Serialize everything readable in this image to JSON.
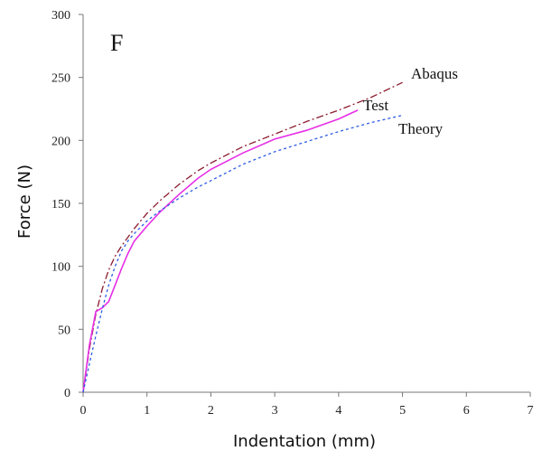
{
  "chart_data": {
    "type": "line",
    "panel_label": "F",
    "xlabel": "Indentation (mm)",
    "ylabel": "Force (N)",
    "xlim": [
      0,
      7
    ],
    "ylim": [
      0,
      300
    ],
    "xticks": [
      "0",
      "1",
      "2",
      "3",
      "4",
      "5",
      "6",
      "7"
    ],
    "yticks": [
      "0",
      "50",
      "100",
      "150",
      "200",
      "250",
      "300"
    ],
    "grid": false,
    "series": [
      {
        "name": "Abaqus",
        "color": "#8b1a2e",
        "dash": "dash-dot",
        "x": [
          0,
          0.1,
          0.2,
          0.3,
          0.4,
          0.5,
          0.6,
          0.7,
          0.8,
          1.0,
          1.2,
          1.5,
          1.8,
          2.0,
          2.5,
          3.0,
          3.5,
          4.0,
          4.5,
          5.0
        ],
        "y": [
          0,
          35,
          62,
          82,
          97,
          108,
          116,
          123,
          130,
          142,
          152,
          165,
          176,
          182,
          195,
          205,
          215,
          224,
          234,
          246
        ]
      },
      {
        "name": "Test",
        "color": "#e62ee6",
        "dash": "solid",
        "x": [
          0,
          0.1,
          0.2,
          0.3,
          0.4,
          0.5,
          0.6,
          0.7,
          0.8,
          1.0,
          1.2,
          1.5,
          1.8,
          2.0,
          2.5,
          3.0,
          3.5,
          4.0,
          4.3
        ],
        "y": [
          0,
          38,
          64,
          67,
          72,
          85,
          98,
          110,
          120,
          132,
          143,
          157,
          170,
          177,
          190,
          201,
          208,
          217,
          224
        ]
      },
      {
        "name": "Theory",
        "color": "#2e5ce6",
        "dash": "dashed",
        "x": [
          0,
          0.1,
          0.2,
          0.3,
          0.4,
          0.5,
          0.6,
          0.7,
          0.8,
          1.0,
          1.2,
          1.5,
          1.8,
          2.0,
          2.5,
          3.0,
          3.5,
          4.0,
          4.5,
          5.0
        ],
        "y": [
          0,
          23,
          45,
          66,
          85,
          100,
          112,
          120,
          126,
          136,
          144,
          154,
          163,
          168,
          181,
          191,
          199,
          207,
          214,
          220
        ]
      }
    ]
  }
}
